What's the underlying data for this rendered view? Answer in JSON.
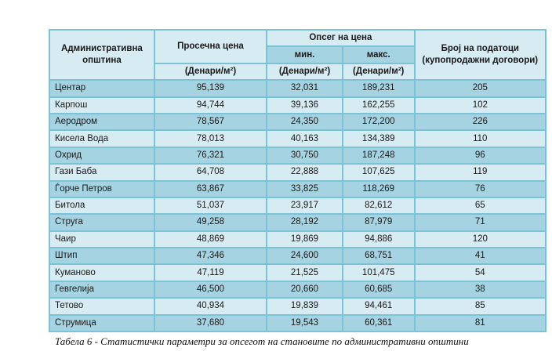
{
  "header": {
    "municipality": "Административна општина",
    "avg_price": "Просечна цена",
    "range": "Опсег на цена",
    "min": "мин.",
    "max": "макс.",
    "count": "Број на податоци (купопродажни договори)",
    "unit": "(Денари/м²)"
  },
  "rows": [
    {
      "name": "Центар",
      "avg": "95,139",
      "min": "32,031",
      "max": "189,231",
      "count": "205"
    },
    {
      "name": "Карпош",
      "avg": "94,744",
      "min": "39,136",
      "max": "162,255",
      "count": "102"
    },
    {
      "name": "Аеродром",
      "avg": "78,567",
      "min": "24,350",
      "max": "172,200",
      "count": "226"
    },
    {
      "name": "Кисела Вода",
      "avg": "78,013",
      "min": "40,163",
      "max": "134,389",
      "count": "110"
    },
    {
      "name": "Охрид",
      "avg": "76,321",
      "min": "30,750",
      "max": "187,248",
      "count": "96"
    },
    {
      "name": "Гази Баба",
      "avg": "64,708",
      "min": "22,888",
      "max": "107,625",
      "count": "119"
    },
    {
      "name": "Ѓорче Петров",
      "avg": "63,867",
      "min": "33,825",
      "max": "118,269",
      "count": "76"
    },
    {
      "name": "Битола",
      "avg": "51,037",
      "min": "23,917",
      "max": "82,612",
      "count": "65"
    },
    {
      "name": "Струга",
      "avg": "49,258",
      "min": "28,192",
      "max": "87,979",
      "count": "71"
    },
    {
      "name": "Чаир",
      "avg": "48,869",
      "min": "19,869",
      "max": "94,886",
      "count": "120"
    },
    {
      "name": "Штип",
      "avg": "47,346",
      "min": "24,600",
      "max": "68,751",
      "count": "41"
    },
    {
      "name": "Куманово",
      "avg": "47,119",
      "min": "21,525",
      "max": "101,475",
      "count": "54"
    },
    {
      "name": "Гевгелија",
      "avg": "46,500",
      "min": "20,660",
      "max": "60,685",
      "count": "38"
    },
    {
      "name": "Тетово",
      "avg": "40,934",
      "min": "19,839",
      "max": "94,461",
      "count": "85"
    },
    {
      "name": "Струмица",
      "avg": "37,680",
      "min": "19,543",
      "max": "60,361",
      "count": "81"
    }
  ],
  "caption": "Табела 6 - Статистички параметри за опсегот на становите по административни општини"
}
